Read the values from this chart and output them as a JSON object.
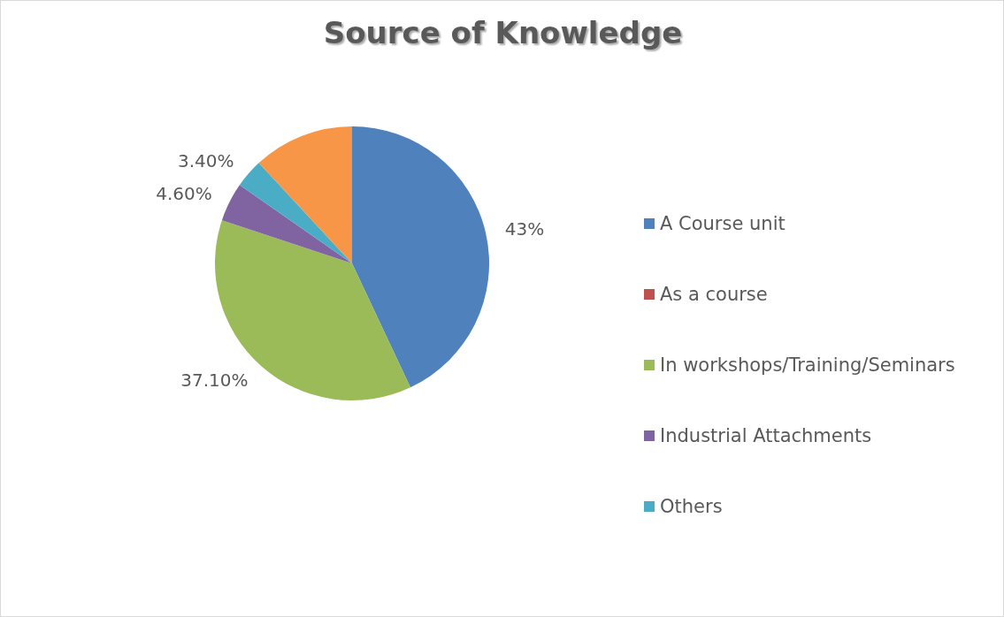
{
  "chart_data": {
    "type": "pie",
    "title": "Source of Knowledge",
    "categories": [
      "A Course unit",
      "As a course",
      "In workshops/Training/Seminars",
      "Industrial Attachments",
      "Others",
      null
    ],
    "values": [
      43,
      0,
      37.1,
      4.6,
      3.4,
      11.9
    ],
    "colors": [
      "#4f81bd",
      "#c0504d",
      "#9bbb59",
      "#8064a2",
      "#4bacc6",
      "#f79646"
    ],
    "value_labels": [
      "43%",
      null,
      "37.10%",
      "4.60%",
      "3.40%",
      null
    ],
    "legend": "right"
  }
}
